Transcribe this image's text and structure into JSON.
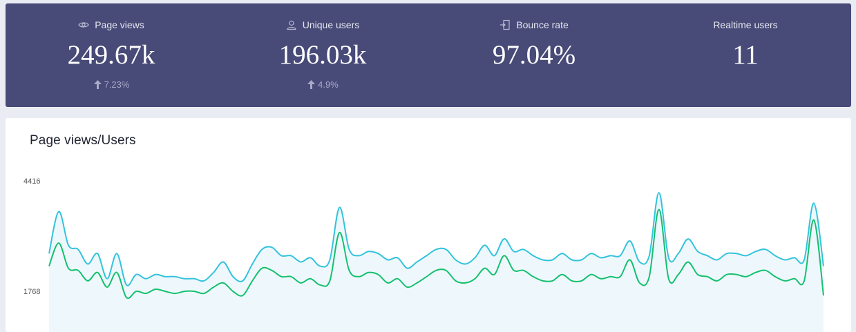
{
  "stats": [
    {
      "icon": "eye-icon",
      "label": "Page views",
      "value": "249.67k",
      "delta": "7.23%"
    },
    {
      "icon": "user-icon",
      "label": "Unique users",
      "value": "196.03k",
      "delta": "4.9%"
    },
    {
      "icon": "exit-icon",
      "label": "Bounce rate",
      "value": "97.04%",
      "delta": ""
    },
    {
      "icon": "",
      "label": "Realtime users",
      "value": "11",
      "delta": ""
    }
  ],
  "colors": {
    "header_bg": "#484a78",
    "page_views_line": "#33c3dc",
    "users_line": "#15c06e",
    "area_fill": "#eef8fc"
  },
  "panel": {
    "title": "Page views/Users"
  },
  "chart_data": {
    "type": "line",
    "title": "Page views/Users",
    "yticks": [
      "4416",
      "1768"
    ],
    "y_tick_values": [
      4416,
      1768
    ],
    "ylim": [
      1000,
      4416
    ],
    "grid": false,
    "legend": "none",
    "series": [
      {
        "values": [
          2700,
          3700,
          2900,
          2800,
          2450,
          2700,
          2100,
          2700,
          1950,
          2200,
          2100,
          2200,
          2150,
          2150,
          2100,
          2100,
          2050,
          2250,
          2500,
          2150,
          2050,
          2450,
          2800,
          2850,
          2650,
          2650,
          2500,
          2600,
          2400,
          2550,
          3800,
          2800,
          2650,
          2750,
          2700,
          2550,
          2600,
          2350,
          2500,
          2650,
          2800,
          2800,
          2550,
          2450,
          2600,
          2900,
          2650,
          3050,
          2750,
          2800,
          2650,
          2550,
          2550,
          2700,
          2550,
          2550,
          2700,
          2600,
          2650,
          2650,
          3000,
          2500,
          2650,
          4150,
          2600,
          2700,
          3050,
          2750,
          2650,
          2550,
          2700,
          2700,
          2650,
          2750,
          2800,
          2650,
          2550,
          2600,
          2550,
          3900,
          2400
        ],
        "color": "#33c3dc"
      },
      {
        "values": [
          2400,
          2950,
          2350,
          2300,
          2050,
          2250,
          1900,
          2250,
          1650,
          1800,
          1750,
          1850,
          1800,
          1750,
          1800,
          1800,
          1750,
          1900,
          2000,
          1800,
          1700,
          2050,
          2350,
          2300,
          2150,
          2150,
          2000,
          2100,
          1950,
          2050,
          3200,
          2300,
          2150,
          2250,
          2200,
          2000,
          2100,
          1900,
          2000,
          2150,
          2300,
          2300,
          2050,
          2000,
          2100,
          2350,
          2200,
          2650,
          2300,
          2300,
          2150,
          2050,
          2050,
          2200,
          2050,
          2050,
          2200,
          2100,
          2150,
          2150,
          2550,
          2000,
          2150,
          3750,
          2100,
          2200,
          2500,
          2200,
          2150,
          2050,
          2200,
          2200,
          2150,
          2250,
          2300,
          2150,
          2050,
          2100,
          2050,
          3500,
          1700
        ],
        "color": "#15c06e"
      }
    ]
  }
}
